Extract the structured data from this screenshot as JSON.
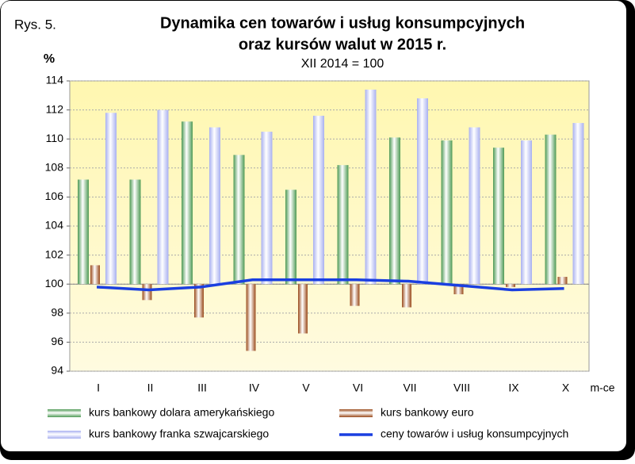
{
  "label": "Rys. 5.",
  "chart_data": {
    "type": "bar",
    "title": "Dynamika cen towarów i usług konsumpcyjnych",
    "title_line2": "oraz kursów walut w 2015 r.",
    "subtitle": "XII 2014 = 100",
    "y_label": "%",
    "x_label": "m-ce",
    "categories": [
      "I",
      "II",
      "III",
      "IV",
      "V",
      "VI",
      "VII",
      "VIII",
      "IX",
      "X"
    ],
    "base": 100,
    "ylim": [
      94,
      114
    ],
    "yticks": [
      94,
      96,
      98,
      100,
      102,
      104,
      106,
      108,
      110,
      112,
      114
    ],
    "grid": true,
    "series": [
      {
        "name": "kurs bankowy dolara amerykańskiego",
        "type": "bar",
        "color": "#4e9a54",
        "values": [
          107.2,
          107.2,
          111.2,
          108.9,
          106.5,
          108.2,
          110.1,
          109.9,
          109.4,
          110.3
        ]
      },
      {
        "name": "kurs bankowy euro",
        "type": "bar",
        "color": "#9a4a1a",
        "values": [
          101.3,
          98.9,
          97.7,
          95.4,
          96.6,
          98.5,
          98.4,
          99.3,
          99.8,
          100.5
        ]
      },
      {
        "name": "kurs bankowy franka szwajcarskiego",
        "type": "bar",
        "color": "#a8b0f0",
        "values": [
          111.8,
          112.0,
          110.8,
          110.5,
          111.6,
          113.4,
          112.8,
          110.8,
          109.9,
          111.1
        ]
      },
      {
        "name": "ceny towarów i usług konsumpcyjnych",
        "type": "line",
        "color": "#1a3fe0",
        "values": [
          99.8,
          99.6,
          99.8,
          100.3,
          100.3,
          100.3,
          100.2,
          99.9,
          99.6,
          99.7
        ]
      }
    ]
  }
}
